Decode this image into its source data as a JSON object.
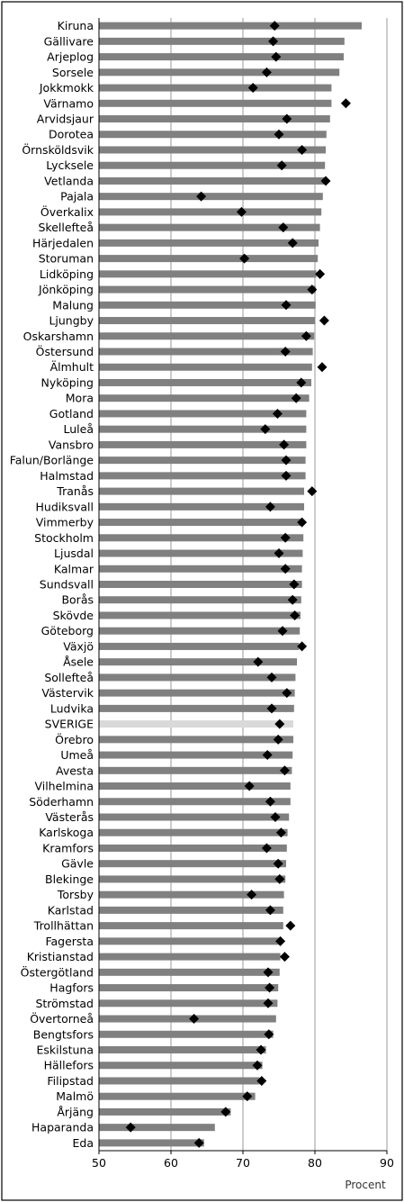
{
  "chart_data": {
    "type": "bar",
    "orientation": "horizontal",
    "xlabel": "Procent",
    "xlim": [
      50,
      90
    ],
    "xticks": [
      50,
      60,
      70,
      80,
      90
    ],
    "grid": "vertical",
    "colors": {
      "bar": "#808080",
      "highlight_bar": "#d9d9d9",
      "marker": "#000000",
      "grid": "#808080",
      "frame": "#000000"
    },
    "highlight": "SVERIGE",
    "categories": [
      "Kiruna",
      "Gällivare",
      "Arjeplog",
      "Sorsele",
      "Jokkmokk",
      "Värnamo",
      "Arvidsjaur",
      "Dorotea",
      "Örnsköldsvik",
      "Lycksele",
      "Vetlanda",
      "Pajala",
      "Överkalix",
      "Skellefteå",
      "Härjedalen",
      "Storuman",
      "Lidköping",
      "Jönköping",
      "Malung",
      "Ljungby",
      "Oskarshamn",
      "Östersund",
      "Älmhult",
      "Nyköping",
      "Mora",
      "Gotland",
      "Luleå",
      "Vansbro",
      "Falun/Borlänge",
      "Halmstad",
      "Tranås",
      "Hudiksvall",
      "Vimmerby",
      "Stockholm",
      "Ljusdal",
      "Kalmar",
      "Sundsvall",
      "Borås",
      "Skövde",
      "Göteborg",
      "Växjö",
      "Åsele",
      "Sollefteå",
      "Västervik",
      "Ludvika",
      "SVERIGE",
      "Örebro",
      "Umeå",
      "Avesta",
      "Vilhelmina",
      "Söderhamn",
      "Västerås",
      "Karlskoga",
      "Kramfors",
      "Gävle",
      "Blekinge",
      "Torsby",
      "Karlstad",
      "Trollhättan",
      "Fagersta",
      "Kristianstad",
      "Östergötland",
      "Hagfors",
      "Strömstad",
      "Övertorneå",
      "Bengtsfors",
      "Eskilstuna",
      "Hällefors",
      "Filipstad",
      "Malmö",
      "Årjäng",
      "Haparanda",
      "Eda"
    ],
    "series": [
      {
        "type": "bar",
        "values": [
          86.5,
          84.1,
          84.0,
          83.4,
          82.3,
          82.3,
          82.1,
          81.6,
          81.5,
          81.4,
          81.3,
          81.1,
          80.9,
          80.7,
          80.5,
          80.4,
          80.2,
          80.1,
          80.1,
          80.0,
          79.9,
          79.7,
          79.6,
          79.5,
          79.2,
          78.8,
          78.8,
          78.8,
          78.7,
          78.7,
          78.5,
          78.5,
          78.4,
          78.4,
          78.3,
          78.2,
          78.2,
          78.1,
          78.0,
          77.9,
          77.8,
          77.5,
          77.3,
          77.2,
          77.1,
          77.0,
          77.0,
          76.9,
          76.8,
          76.6,
          76.6,
          76.4,
          76.2,
          76.1,
          76.0,
          75.9,
          75.7,
          75.6,
          75.6,
          75.3,
          75.2,
          75.1,
          74.9,
          74.8,
          74.6,
          74.2,
          73.2,
          72.7,
          72.3,
          71.7,
          68.3,
          66.1,
          64.6
        ]
      },
      {
        "type": "scatter",
        "values": [
          74.4,
          74.2,
          74.6,
          73.3,
          71.4,
          84.3,
          76.1,
          75.0,
          78.2,
          75.4,
          81.5,
          64.2,
          69.8,
          75.6,
          76.9,
          70.2,
          80.7,
          79.6,
          76.0,
          81.3,
          78.8,
          75.9,
          81.0,
          78.1,
          77.4,
          74.8,
          73.1,
          75.7,
          76.0,
          76.0,
          79.6,
          73.8,
          78.2,
          75.9,
          75.0,
          75.9,
          77.1,
          76.9,
          77.2,
          75.5,
          78.2,
          72.1,
          74.0,
          76.1,
          74.0,
          75.1,
          74.9,
          73.4,
          75.8,
          70.9,
          73.8,
          74.5,
          75.3,
          73.3,
          74.9,
          75.1,
          71.2,
          73.8,
          76.6,
          75.2,
          75.8,
          73.5,
          73.7,
          73.5,
          63.2,
          73.6,
          72.5,
          72.0,
          72.6,
          70.6,
          67.6,
          54.4,
          63.9
        ]
      }
    ]
  }
}
